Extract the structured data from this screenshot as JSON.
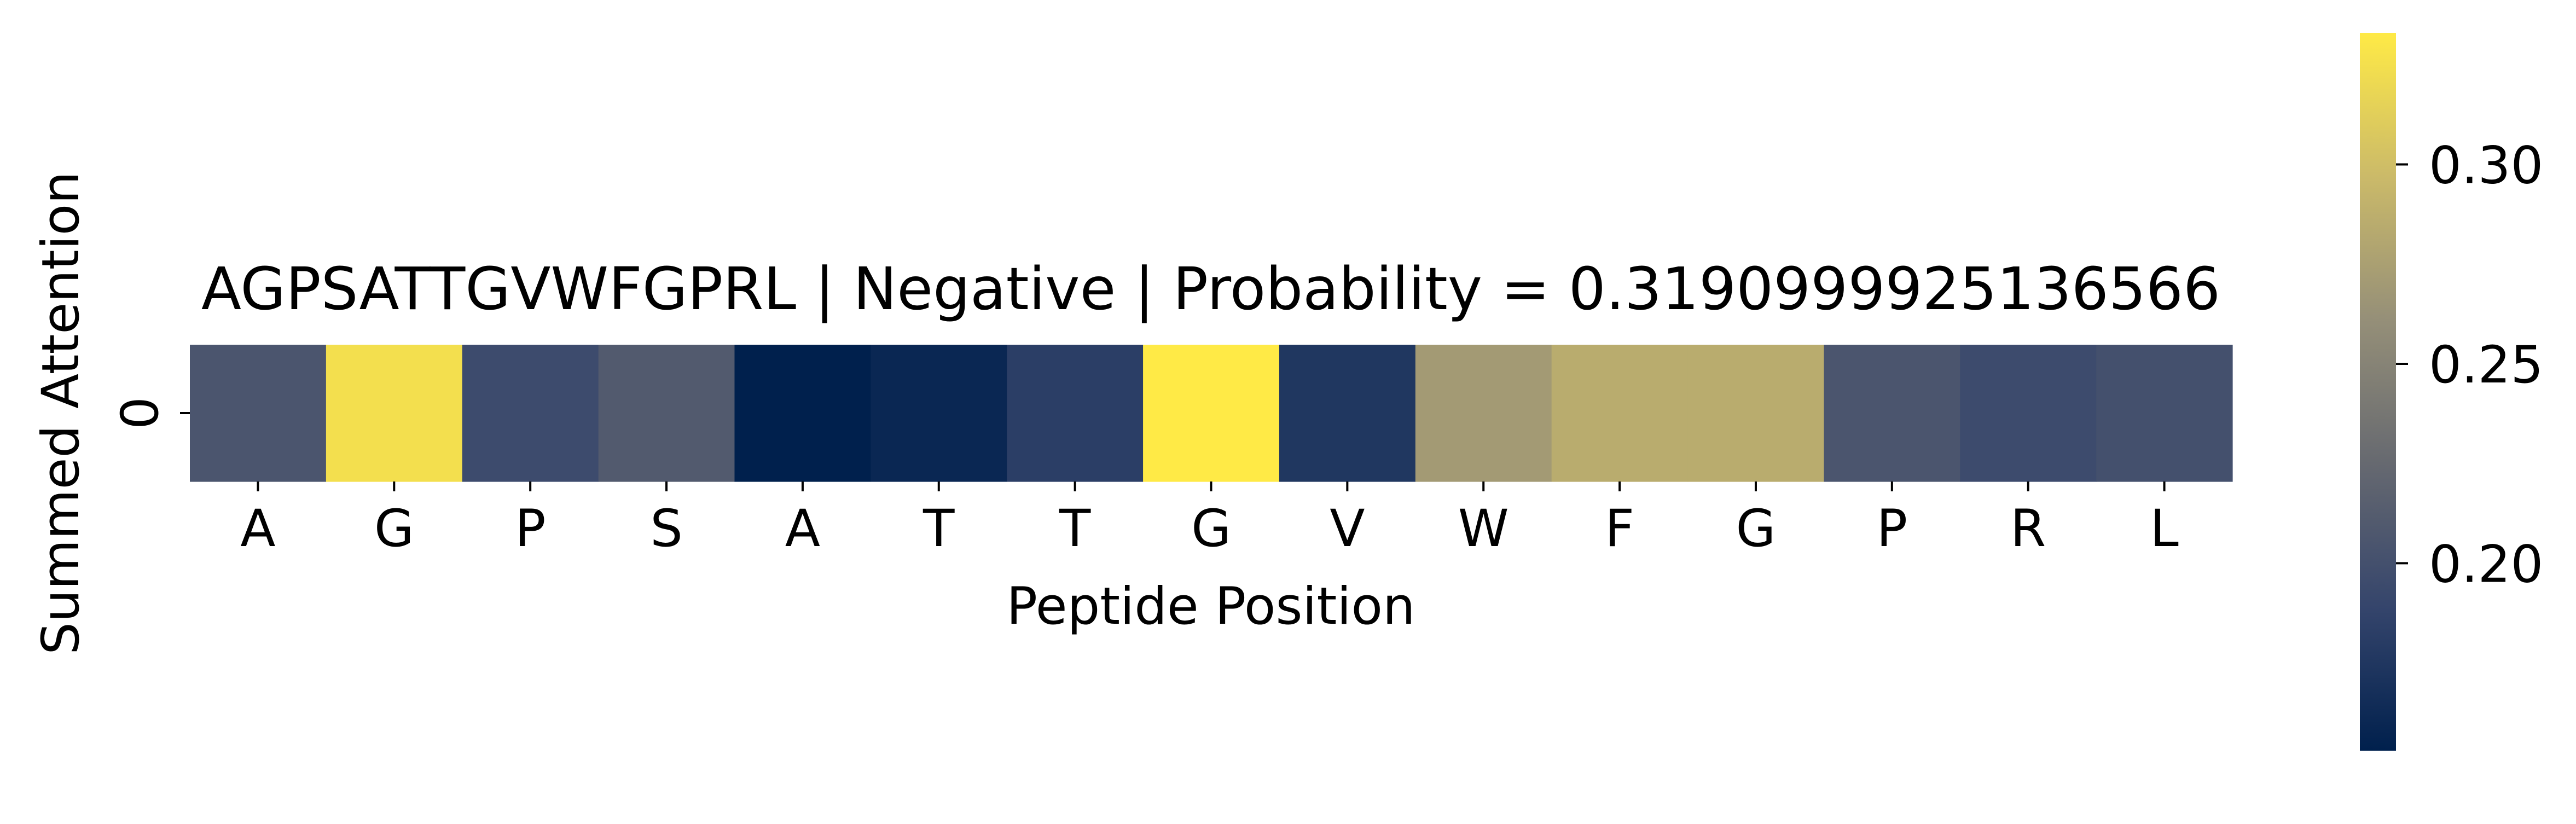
{
  "chart_data": {
    "type": "heatmap",
    "title": "AGPSATTGVWFGPRL | Negative | Probability = 0.3190999925136566",
    "xlabel": "Peptide Position",
    "ylabel": "Summed Attention",
    "x_categories": [
      "A",
      "G",
      "P",
      "S",
      "A",
      "T",
      "T",
      "G",
      "V",
      "W",
      "F",
      "G",
      "P",
      "R",
      "L"
    ],
    "y_categories": [
      "0"
    ],
    "values": [
      [
        0.205,
        0.325,
        0.195,
        0.21,
        0.153,
        0.16,
        0.182,
        0.333,
        0.175,
        0.27,
        0.285,
        0.285,
        0.205,
        0.195,
        0.2
      ]
    ],
    "colorbar": {
      "range": [
        0.153,
        0.333
      ],
      "ticks": [
        0.2,
        0.25,
        0.3
      ],
      "tick_labels": [
        "0.20",
        "0.25",
        "0.30"
      ],
      "colormap": "cividis",
      "stops": [
        "#00204D",
        "#35456C",
        "#666970",
        "#958F78",
        "#CBBA69",
        "#FFEA46"
      ]
    },
    "grid": false,
    "legend": "colorbar-right"
  }
}
